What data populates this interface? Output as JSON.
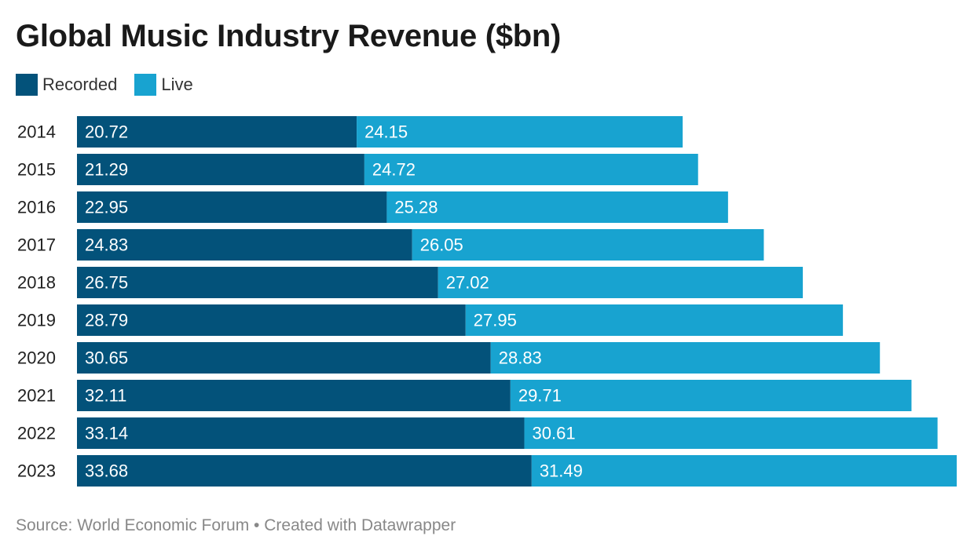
{
  "title": "Global Music Industry Revenue ($bn)",
  "source": "Source: World Economic Forum • Created with Datawrapper",
  "colors": {
    "recorded": "#03527a",
    "live": "#18a3d0",
    "label_text": "#ffffff",
    "category_text": "#222222"
  },
  "chart_data": {
    "type": "bar",
    "orientation": "horizontal",
    "stacked": true,
    "categories": [
      "2014",
      "2015",
      "2016",
      "2017",
      "2018",
      "2019",
      "2020",
      "2021",
      "2022",
      "2023"
    ],
    "series": [
      {
        "name": "Recorded",
        "color": "#03527a",
        "values": [
          20.72,
          21.29,
          22.95,
          24.83,
          26.75,
          28.79,
          30.65,
          32.11,
          33.14,
          33.68
        ],
        "labels": [
          "20.72",
          "21.29",
          "22.95",
          "24.83",
          "26.75",
          "28.79",
          "30.65",
          "32.11",
          "33.14",
          "33.68"
        ]
      },
      {
        "name": "Live",
        "color": "#18a3d0",
        "values": [
          24.15,
          24.72,
          25.28,
          26.05,
          27.02,
          27.95,
          28.83,
          29.71,
          30.61,
          31.49
        ],
        "labels": [
          "24.15",
          "24.72",
          "25.28",
          "26.05",
          "27.02",
          "27.95",
          "28.83",
          "29.71",
          "30.61",
          "31.49"
        ]
      }
    ],
    "legend_position": "top-left",
    "grid": false,
    "data_labels": "inside-left"
  }
}
